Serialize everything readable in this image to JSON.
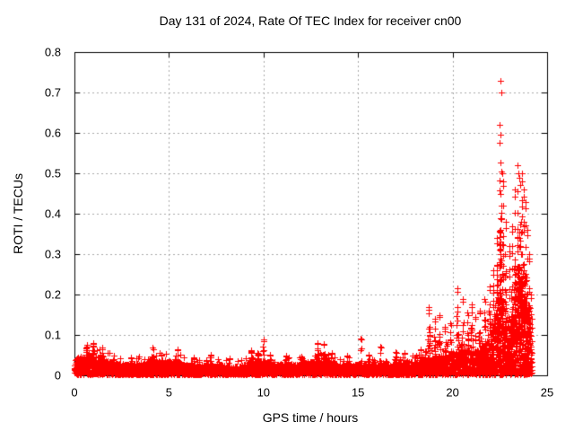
{
  "window": {
    "background": "#ffffff"
  },
  "chart_data": {
    "type": "scatter",
    "title": "Day 131 of 2024, Rate Of TEC Index for receiver cn00",
    "xlabel": "GPS time / hours",
    "ylabel": "ROTI / TECUs",
    "xlim": [
      0,
      25
    ],
    "ylim": [
      0,
      0.8
    ],
    "xticks": [
      "0",
      "5",
      "10",
      "15",
      "20",
      "25"
    ],
    "yticks": [
      "0",
      "0.1",
      "0.2",
      "0.3",
      "0.4",
      "0.5",
      "0.6",
      "0.7",
      "0.8"
    ],
    "grid": true,
    "grid_style": "dashed",
    "legend_position": "none",
    "marker": "plus",
    "marker_color": "#ff0000",
    "axis_color": "#000000",
    "grid_color": "#a8a8a8",
    "series_name": "ROTI",
    "x_data_range": [
      0,
      24.2
    ],
    "peak_point": {
      "x": 22.55,
      "y": 0.73
    },
    "base_band_envelope": [
      [
        0,
        0.045
      ],
      [
        0.4,
        0.05
      ],
      [
        0.8,
        0.05
      ],
      [
        1.2,
        0.05
      ],
      [
        1.6,
        0.04
      ],
      [
        2.0,
        0.035
      ],
      [
        2.6,
        0.03
      ],
      [
        3.2,
        0.03
      ],
      [
        3.8,
        0.035
      ],
      [
        4.3,
        0.04
      ],
      [
        4.8,
        0.035
      ],
      [
        5.3,
        0.04
      ],
      [
        5.8,
        0.03
      ],
      [
        6.4,
        0.025
      ],
      [
        7.0,
        0.03
      ],
      [
        7.6,
        0.03
      ],
      [
        8.2,
        0.025
      ],
      [
        8.8,
        0.025
      ],
      [
        9.3,
        0.04
      ],
      [
        9.8,
        0.035
      ],
      [
        10.2,
        0.04
      ],
      [
        10.6,
        0.03
      ],
      [
        11.2,
        0.03
      ],
      [
        11.8,
        0.03
      ],
      [
        12.4,
        0.035
      ],
      [
        12.9,
        0.04
      ],
      [
        13.4,
        0.04
      ],
      [
        14.0,
        0.03
      ],
      [
        14.6,
        0.03
      ],
      [
        15.2,
        0.03
      ],
      [
        15.8,
        0.03
      ],
      [
        16.4,
        0.028
      ],
      [
        17.0,
        0.032
      ],
      [
        17.6,
        0.035
      ],
      [
        18.2,
        0.035
      ],
      [
        18.7,
        0.045
      ],
      [
        19.2,
        0.05
      ],
      [
        19.7,
        0.055
      ],
      [
        20.2,
        0.06
      ],
      [
        20.7,
        0.065
      ],
      [
        21.1,
        0.06
      ],
      [
        21.5,
        0.07
      ],
      [
        21.9,
        0.09
      ],
      [
        22.2,
        0.13
      ],
      [
        22.45,
        0.22
      ],
      [
        22.7,
        0.18
      ],
      [
        23.0,
        0.12
      ],
      [
        23.25,
        0.2
      ],
      [
        23.5,
        0.25
      ],
      [
        23.8,
        0.22
      ],
      [
        24.0,
        0.2
      ],
      [
        24.1,
        0.12
      ],
      [
        24.2,
        0.04
      ]
    ],
    "spike_clusters": [
      [
        0.65,
        0.075,
        0.15,
        24
      ],
      [
        1.0,
        0.08,
        0.12,
        20
      ],
      [
        1.45,
        0.068,
        0.1,
        14
      ],
      [
        2.1,
        0.05,
        0.08,
        8
      ],
      [
        3.0,
        0.045,
        0.06,
        6
      ],
      [
        4.15,
        0.068,
        0.1,
        12
      ],
      [
        4.6,
        0.052,
        0.08,
        7
      ],
      [
        5.45,
        0.065,
        0.08,
        10
      ],
      [
        6.3,
        0.045,
        0.06,
        6
      ],
      [
        7.2,
        0.052,
        0.07,
        8
      ],
      [
        8.2,
        0.042,
        0.05,
        5
      ],
      [
        9.35,
        0.062,
        0.12,
        14
      ],
      [
        9.7,
        0.055,
        0.08,
        8
      ],
      [
        10.0,
        0.088,
        0.05,
        9
      ],
      [
        10.35,
        0.052,
        0.08,
        6
      ],
      [
        11.2,
        0.048,
        0.06,
        5
      ],
      [
        12.0,
        0.046,
        0.06,
        5
      ],
      [
        12.85,
        0.08,
        0.09,
        13
      ],
      [
        13.2,
        0.078,
        0.08,
        11
      ],
      [
        13.6,
        0.055,
        0.08,
        7
      ],
      [
        14.4,
        0.048,
        0.06,
        5
      ],
      [
        15.15,
        0.092,
        0.03,
        6
      ],
      [
        15.55,
        0.052,
        0.06,
        5
      ],
      [
        16.2,
        0.072,
        0.05,
        8
      ],
      [
        17.0,
        0.058,
        0.06,
        7
      ],
      [
        17.45,
        0.055,
        0.06,
        6
      ],
      [
        18.3,
        0.065,
        0.06,
        8
      ],
      [
        18.75,
        0.17,
        0.06,
        15
      ],
      [
        19.05,
        0.14,
        0.05,
        11
      ],
      [
        19.3,
        0.15,
        0.05,
        10
      ],
      [
        19.6,
        0.12,
        0.06,
        9
      ],
      [
        19.9,
        0.13,
        0.05,
        9
      ],
      [
        20.25,
        0.215,
        0.06,
        15
      ],
      [
        20.55,
        0.19,
        0.06,
        13
      ],
      [
        20.8,
        0.155,
        0.05,
        10
      ],
      [
        21.0,
        0.175,
        0.05,
        12
      ],
      [
        21.2,
        0.145,
        0.05,
        9
      ],
      [
        21.45,
        0.16,
        0.06,
        11
      ],
      [
        21.7,
        0.19,
        0.06,
        13
      ],
      [
        21.95,
        0.22,
        0.05,
        13
      ],
      [
        22.15,
        0.26,
        0.05,
        14
      ],
      [
        22.35,
        0.34,
        0.04,
        16
      ],
      [
        22.5,
        0.62,
        0.035,
        28
      ],
      [
        22.55,
        0.73,
        0.03,
        18
      ],
      [
        22.65,
        0.5,
        0.04,
        18
      ],
      [
        22.8,
        0.38,
        0.05,
        15
      ],
      [
        23.0,
        0.32,
        0.05,
        13
      ],
      [
        23.15,
        0.37,
        0.04,
        13
      ],
      [
        23.3,
        0.46,
        0.04,
        16
      ],
      [
        23.45,
        0.52,
        0.035,
        20
      ],
      [
        23.55,
        0.49,
        0.035,
        18
      ],
      [
        23.65,
        0.5,
        0.035,
        18
      ],
      [
        23.75,
        0.46,
        0.035,
        16
      ],
      [
        23.85,
        0.43,
        0.04,
        15
      ],
      [
        23.95,
        0.36,
        0.04,
        13
      ],
      [
        24.05,
        0.3,
        0.04,
        12
      ],
      [
        24.15,
        0.2,
        0.04,
        8
      ]
    ]
  }
}
